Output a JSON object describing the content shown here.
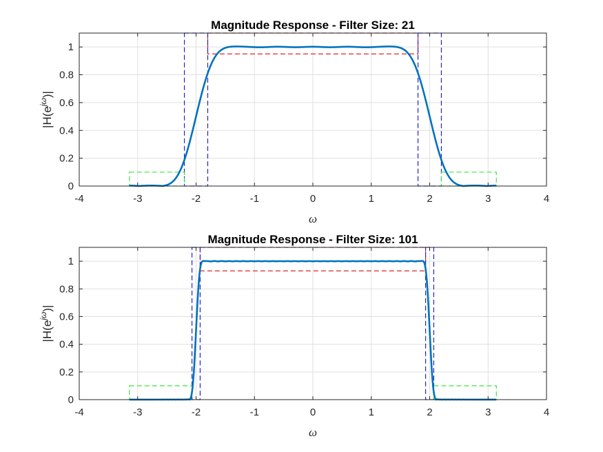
{
  "chart_data": [
    {
      "type": "line",
      "title": "Magnitude Response - Filter Size: 21",
      "xlabel": "ω",
      "ylabel": "|H(e",
      "ylabel_sup": "jω",
      "ylabel_end": ")|",
      "xlim": [
        -4,
        4
      ],
      "ylim": [
        0,
        1.1
      ],
      "xticks": [
        -4,
        -3,
        -2,
        -1,
        0,
        1,
        2,
        3,
        4
      ],
      "xtick_labels": [
        "-4",
        "-3",
        "-2",
        "-1",
        "0",
        "1",
        "2",
        "3",
        "4"
      ],
      "yticks": [
        0,
        0.2,
        0.4,
        0.6,
        0.8,
        1
      ],
      "ytick_labels": [
        "0",
        "0.2",
        "0.4",
        "0.6",
        "0.8",
        "1"
      ],
      "grid": true,
      "filter_order": 21,
      "cutoff": 2.0,
      "passband_edge": 1.8,
      "stopband_edge": 2.2,
      "passband_min": 0.95,
      "passband_max": 1.1,
      "stopband_max": 0.1,
      "colors": {
        "response": "#0072BD",
        "passband": "#d62728",
        "transition": "#1f1fd6",
        "stopband": "#3ce63c"
      }
    },
    {
      "type": "line",
      "title": "Magnitude Response - Filter Size: 101",
      "xlabel": "ω",
      "ylabel": "|H(e",
      "ylabel_sup": "jω",
      "ylabel_end": ")|",
      "xlim": [
        -4,
        4
      ],
      "ylim": [
        0,
        1.1
      ],
      "xticks": [
        -4,
        -3,
        -2,
        -1,
        0,
        1,
        2,
        3,
        4
      ],
      "xtick_labels": [
        "-4",
        "-3",
        "-2",
        "-1",
        "0",
        "1",
        "2",
        "3",
        "4"
      ],
      "yticks": [
        0,
        0.2,
        0.4,
        0.6,
        0.8,
        1
      ],
      "ytick_labels": [
        "0",
        "0.2",
        "0.4",
        "0.6",
        "0.8",
        "1"
      ],
      "grid": true,
      "filter_order": 101,
      "cutoff": 2.0,
      "passband_edge": 1.93,
      "stopband_edge": 2.07,
      "passband_min": 0.93,
      "passband_max": 1.1,
      "stopband_max": 0.1,
      "colors": {
        "response": "#0072BD",
        "passband": "#d62728",
        "transition": "#1f1fd6",
        "stopband": "#3ce63c"
      }
    }
  ]
}
